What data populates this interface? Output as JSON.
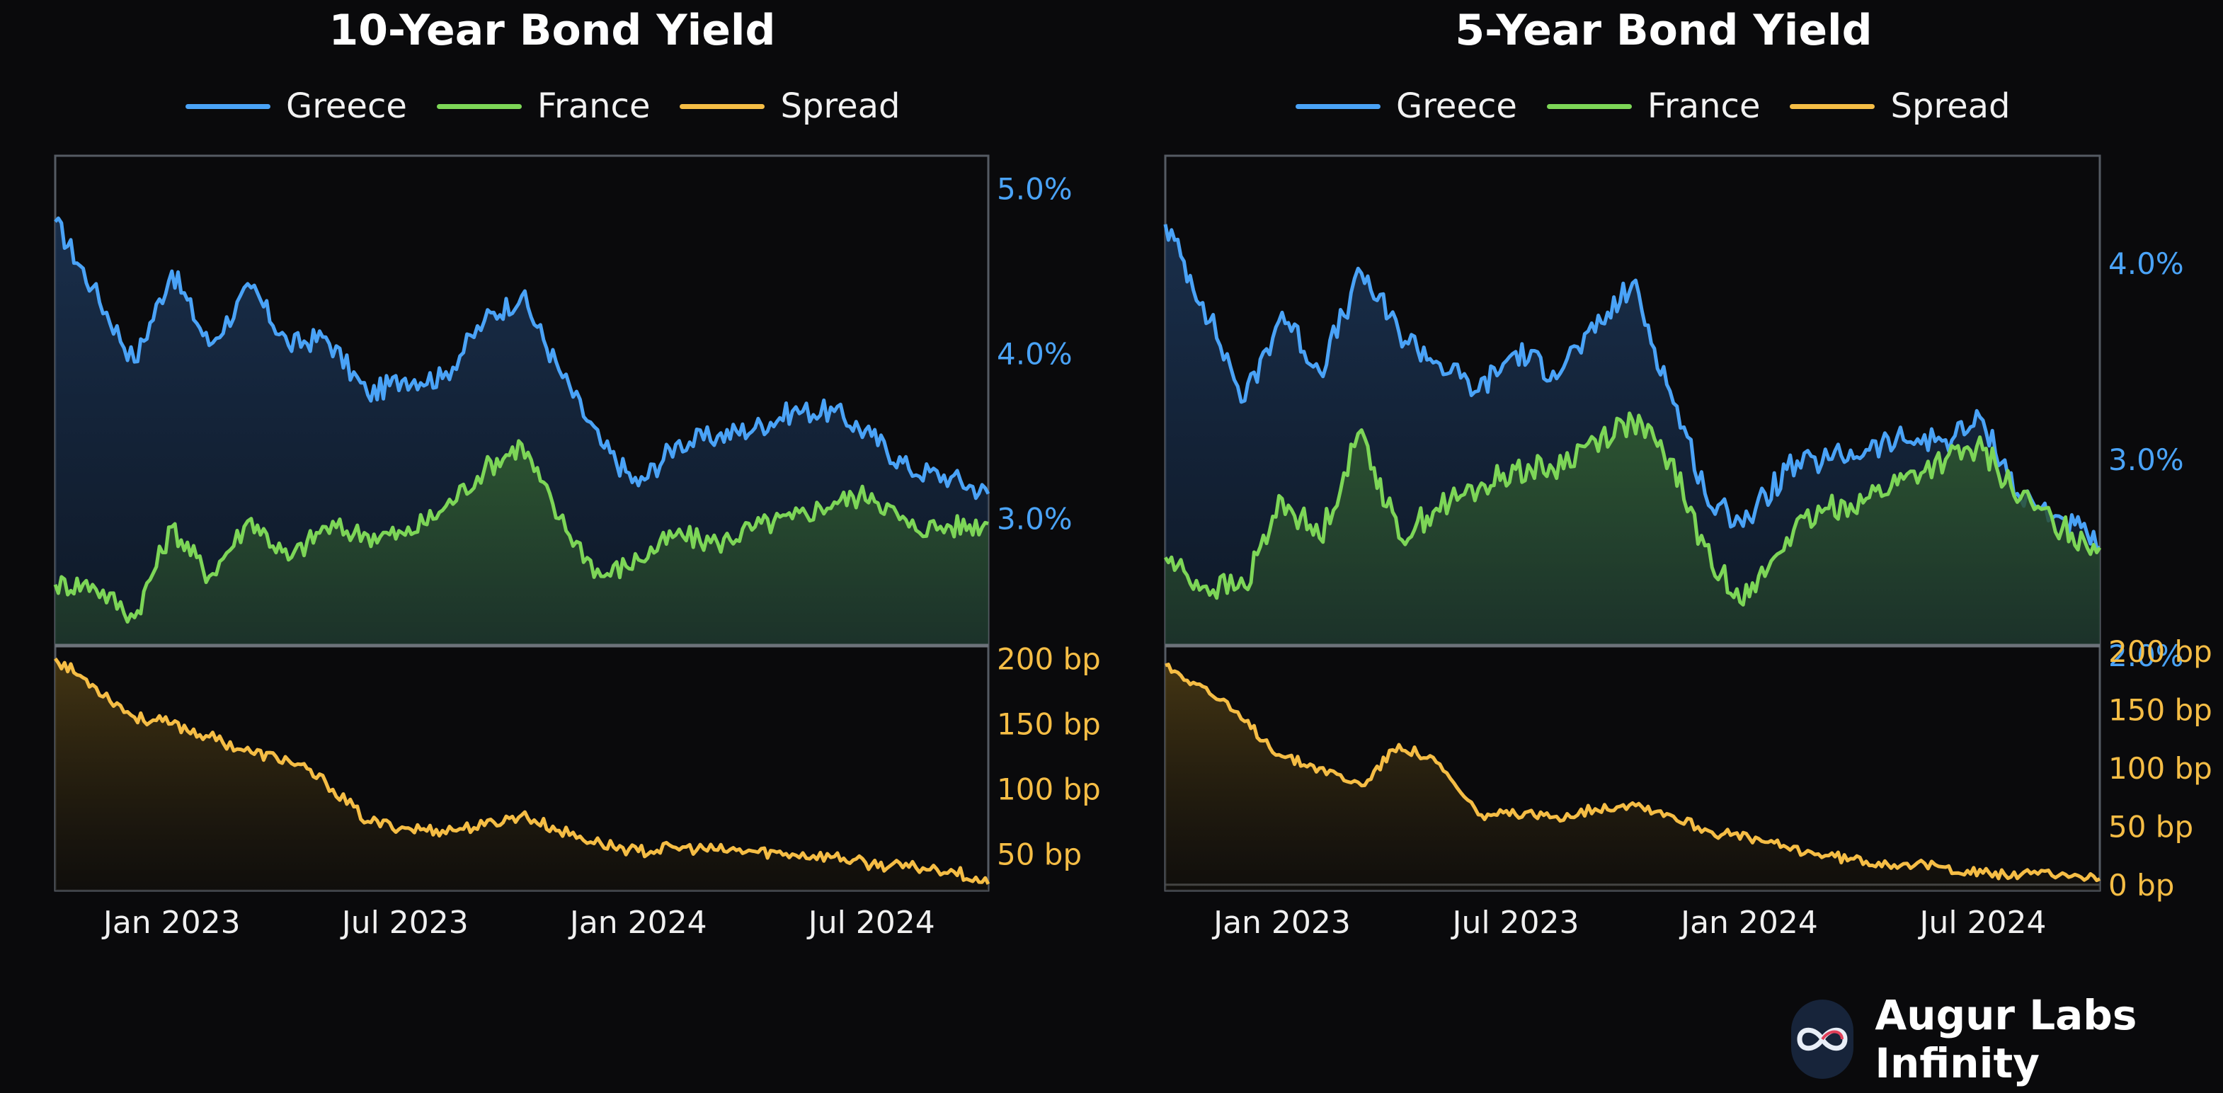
{
  "colors": {
    "greece": "#4aa3f7",
    "france": "#7dd657",
    "spread": "#f5bd45",
    "frame": "#555b63",
    "background": "#0a0a0c"
  },
  "brand": {
    "name": "Augur Labs Infinity",
    "icon": "infinity-logo-icon"
  },
  "chart_data": [
    {
      "type": "line",
      "title": "10-Year Bond Yield",
      "legend": [
        "Greece",
        "France",
        "Spread"
      ],
      "x_ticks": [
        "Jan 2023",
        "Jul 2023",
        "Jan 2024",
        "Jul 2024"
      ],
      "x_tick_positions": [
        2023.0,
        2023.5,
        2024.0,
        2024.5
      ],
      "x_range": [
        2022.75,
        2024.75
      ],
      "yield_axis": {
        "range": [
          2.23,
          5.2
        ],
        "ticks": [
          3.0,
          4.0,
          5.0
        ],
        "tick_labels": [
          "3.0%",
          "4.0%",
          "5.0%"
        ]
      },
      "spread_axis": {
        "range": [
          22,
          210
        ],
        "ticks": [
          50,
          100,
          150,
          200
        ],
        "tick_labels": [
          "50 bp",
          "100 bp",
          "150 bp",
          "200 bp"
        ]
      },
      "x": [
        2022.75,
        2022.83,
        2022.92,
        2023.0,
        2023.08,
        2023.17,
        2023.25,
        2023.33,
        2023.42,
        2023.5,
        2023.58,
        2023.67,
        2023.75,
        2023.83,
        2023.92,
        2024.0,
        2024.08,
        2024.17,
        2024.25,
        2024.33,
        2024.42,
        2024.5,
        2024.58,
        2024.67,
        2024.75
      ],
      "series": [
        {
          "name": "Greece",
          "values": [
            4.8,
            4.4,
            3.95,
            4.5,
            4.05,
            4.4,
            4.05,
            4.1,
            3.75,
            3.85,
            3.85,
            4.2,
            4.35,
            3.9,
            3.45,
            3.2,
            3.45,
            3.5,
            3.55,
            3.65,
            3.65,
            3.5,
            3.3,
            3.25,
            3.15
          ]
        },
        {
          "name": "France",
          "values": [
            2.6,
            2.6,
            2.4,
            2.95,
            2.65,
            3.0,
            2.75,
            2.95,
            2.9,
            2.9,
            3.05,
            3.3,
            3.45,
            3.0,
            2.65,
            2.75,
            2.9,
            2.85,
            2.95,
            3.0,
            3.1,
            3.15,
            2.95,
            2.95,
            2.97
          ]
        },
        {
          "name": "Spread",
          "values": [
            200,
            180,
            155,
            150,
            140,
            128,
            122,
            105,
            75,
            70,
            68,
            72,
            80,
            68,
            58,
            52,
            55,
            53,
            52,
            50,
            48,
            42,
            40,
            38,
            27
          ]
        }
      ]
    },
    {
      "type": "line",
      "title": "5-Year Bond Yield",
      "legend": [
        "Greece",
        "France",
        "Spread"
      ],
      "x_ticks": [
        "Jan 2023",
        "Jul 2023",
        "Jan 2024",
        "Jul 2024"
      ],
      "x_tick_positions": [
        2023.0,
        2023.5,
        2024.0,
        2024.5
      ],
      "x_range": [
        2022.75,
        2024.75
      ],
      "yield_axis": {
        "range": [
          2.05,
          4.55
        ],
        "ticks": [
          2.0,
          3.0,
          4.0
        ],
        "tick_labels": [
          "2.0%",
          "3.0%",
          "4.0%"
        ]
      },
      "spread_axis": {
        "range": [
          -5,
          205
        ],
        "ticks": [
          0,
          50,
          100,
          150,
          200
        ],
        "tick_labels": [
          "0 bp",
          "50 bp",
          "100 bp",
          "150 bp",
          "200 bp"
        ]
      },
      "x": [
        2022.75,
        2022.83,
        2022.92,
        2023.0,
        2023.08,
        2023.17,
        2023.25,
        2023.33,
        2023.42,
        2023.5,
        2023.58,
        2023.67,
        2023.75,
        2023.83,
        2023.92,
        2024.0,
        2024.08,
        2024.17,
        2024.25,
        2024.33,
        2024.42,
        2024.5,
        2024.58,
        2024.67,
        2024.75
      ],
      "series": [
        {
          "name": "Greece",
          "values": [
            4.2,
            3.8,
            3.3,
            3.75,
            3.45,
            3.95,
            3.65,
            3.5,
            3.35,
            3.55,
            3.45,
            3.65,
            3.9,
            3.35,
            2.75,
            2.7,
            2.95,
            3.0,
            3.05,
            3.1,
            3.1,
            3.2,
            2.8,
            2.7,
            2.55
          ]
        },
        {
          "name": "France",
          "values": [
            2.5,
            2.35,
            2.35,
            2.8,
            2.6,
            3.15,
            2.6,
            2.75,
            2.85,
            2.95,
            2.95,
            3.1,
            3.2,
            3.0,
            2.45,
            2.3,
            2.6,
            2.75,
            2.8,
            2.9,
            3.0,
            3.05,
            2.8,
            2.65,
            2.55
          ]
        },
        {
          "name": "Spread",
          "values": [
            188,
            170,
            140,
            110,
            100,
            85,
            120,
            105,
            60,
            60,
            58,
            65,
            70,
            60,
            45,
            40,
            32,
            25,
            20,
            18,
            15,
            10,
            8,
            10,
            5
          ]
        }
      ]
    }
  ]
}
